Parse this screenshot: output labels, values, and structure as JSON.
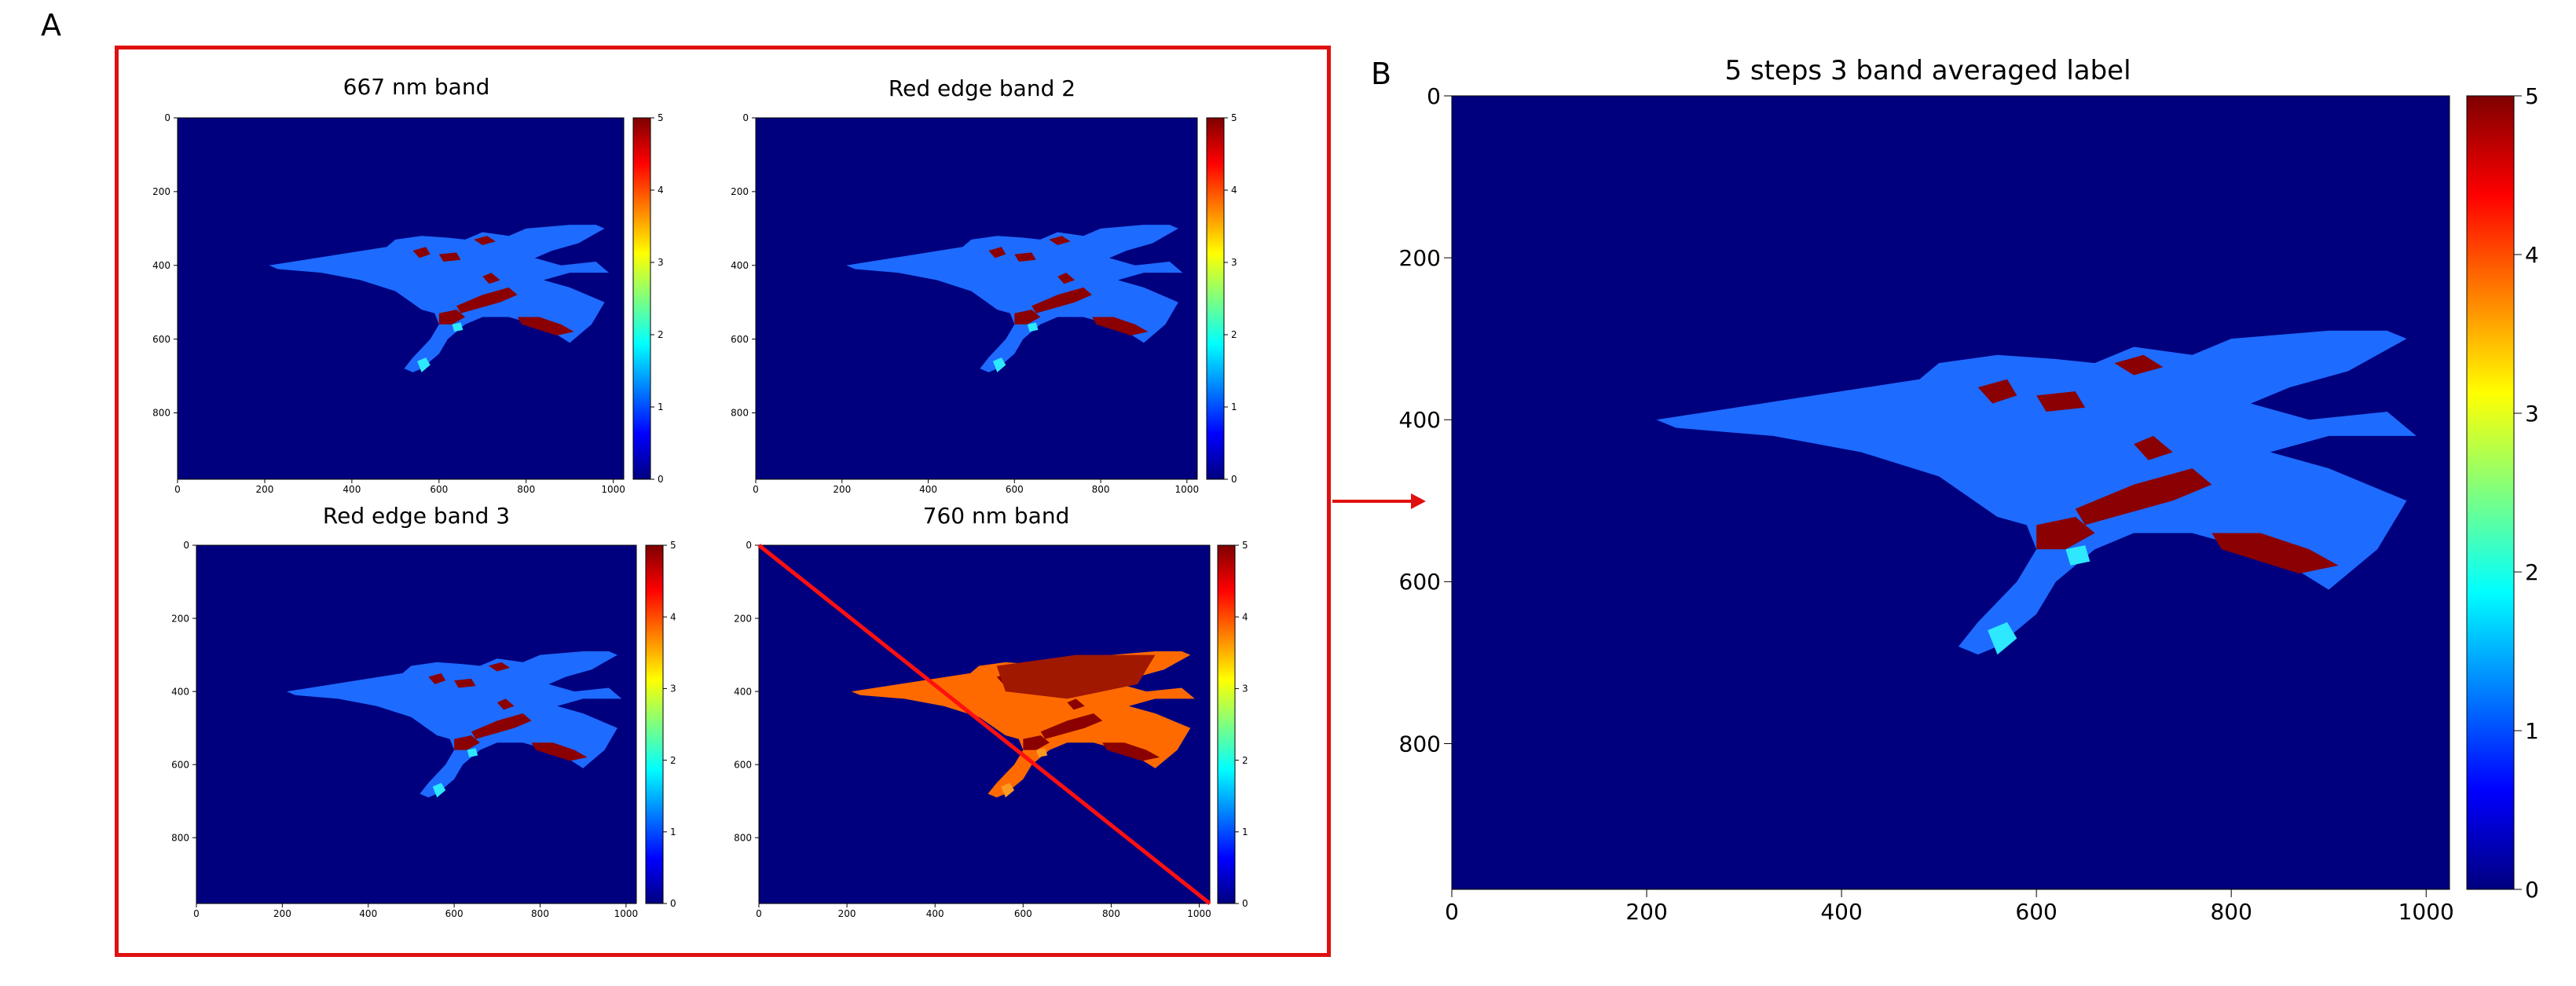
{
  "panels": {
    "a_label": "A",
    "b_label": "B"
  },
  "colormap": [
    "#00007f",
    "#0000ff",
    "#007fff",
    "#00ffff",
    "#7fff7f",
    "#ffff00",
    "#ff7f00",
    "#ff0000",
    "#7f0000"
  ],
  "colors": {
    "box": "#e01010",
    "background": "#00007f",
    "leaf": "#1e6bff",
    "hot": "#8b0000",
    "orange": "#ff6a00"
  },
  "chart_data": [
    {
      "type": "heatmap",
      "title": "667 nm band",
      "x_ticks": [
        "0",
        "200",
        "400",
        "600",
        "800",
        "1000"
      ],
      "y_ticks": [
        "0",
        "200",
        "400",
        "600",
        "800"
      ],
      "colorbar_ticks": [
        "0",
        "1",
        "2",
        "3",
        "4",
        "5"
      ],
      "xlim": [
        0,
        1024
      ],
      "ylim": [
        0,
        980
      ],
      "clim": [
        0,
        5
      ]
    },
    {
      "type": "heatmap",
      "title": "Red edge band 2",
      "x_ticks": [
        "0",
        "200",
        "400",
        "600",
        "800",
        "1000"
      ],
      "y_ticks": [
        "0",
        "200",
        "400",
        "600",
        "800"
      ],
      "colorbar_ticks": [
        "0",
        "1",
        "2",
        "3",
        "4",
        "5"
      ],
      "xlim": [
        0,
        1024
      ],
      "ylim": [
        0,
        980
      ],
      "clim": [
        0,
        5
      ]
    },
    {
      "type": "heatmap",
      "title": "Red edge band 3",
      "x_ticks": [
        "0",
        "200",
        "400",
        "600",
        "800",
        "1000"
      ],
      "y_ticks": [
        "0",
        "200",
        "400",
        "600",
        "800"
      ],
      "colorbar_ticks": [
        "0",
        "1",
        "2",
        "3",
        "4",
        "5"
      ],
      "xlim": [
        0,
        1024
      ],
      "ylim": [
        0,
        980
      ],
      "clim": [
        0,
        5
      ]
    },
    {
      "type": "heatmap",
      "title": "760 nm band",
      "x_ticks": [
        "0",
        "200",
        "400",
        "600",
        "800",
        "1000"
      ],
      "y_ticks": [
        "0",
        "200",
        "400",
        "600",
        "800"
      ],
      "colorbar_ticks": [
        "0",
        "1",
        "2",
        "3",
        "4",
        "5"
      ],
      "xlim": [
        0,
        1024
      ],
      "ylim": [
        0,
        980
      ],
      "clim": [
        0,
        5
      ]
    },
    {
      "type": "heatmap",
      "title": "5 steps 3 band averaged label",
      "x_ticks": [
        "0",
        "200",
        "400",
        "600",
        "800",
        "1000"
      ],
      "y_ticks": [
        "0",
        "200",
        "400",
        "600",
        "800"
      ],
      "colorbar_ticks": [
        "0",
        "1",
        "2",
        "3",
        "4",
        "5"
      ],
      "xlim": [
        0,
        1024
      ],
      "ylim": [
        0,
        980
      ],
      "clim": [
        0,
        5
      ]
    }
  ]
}
